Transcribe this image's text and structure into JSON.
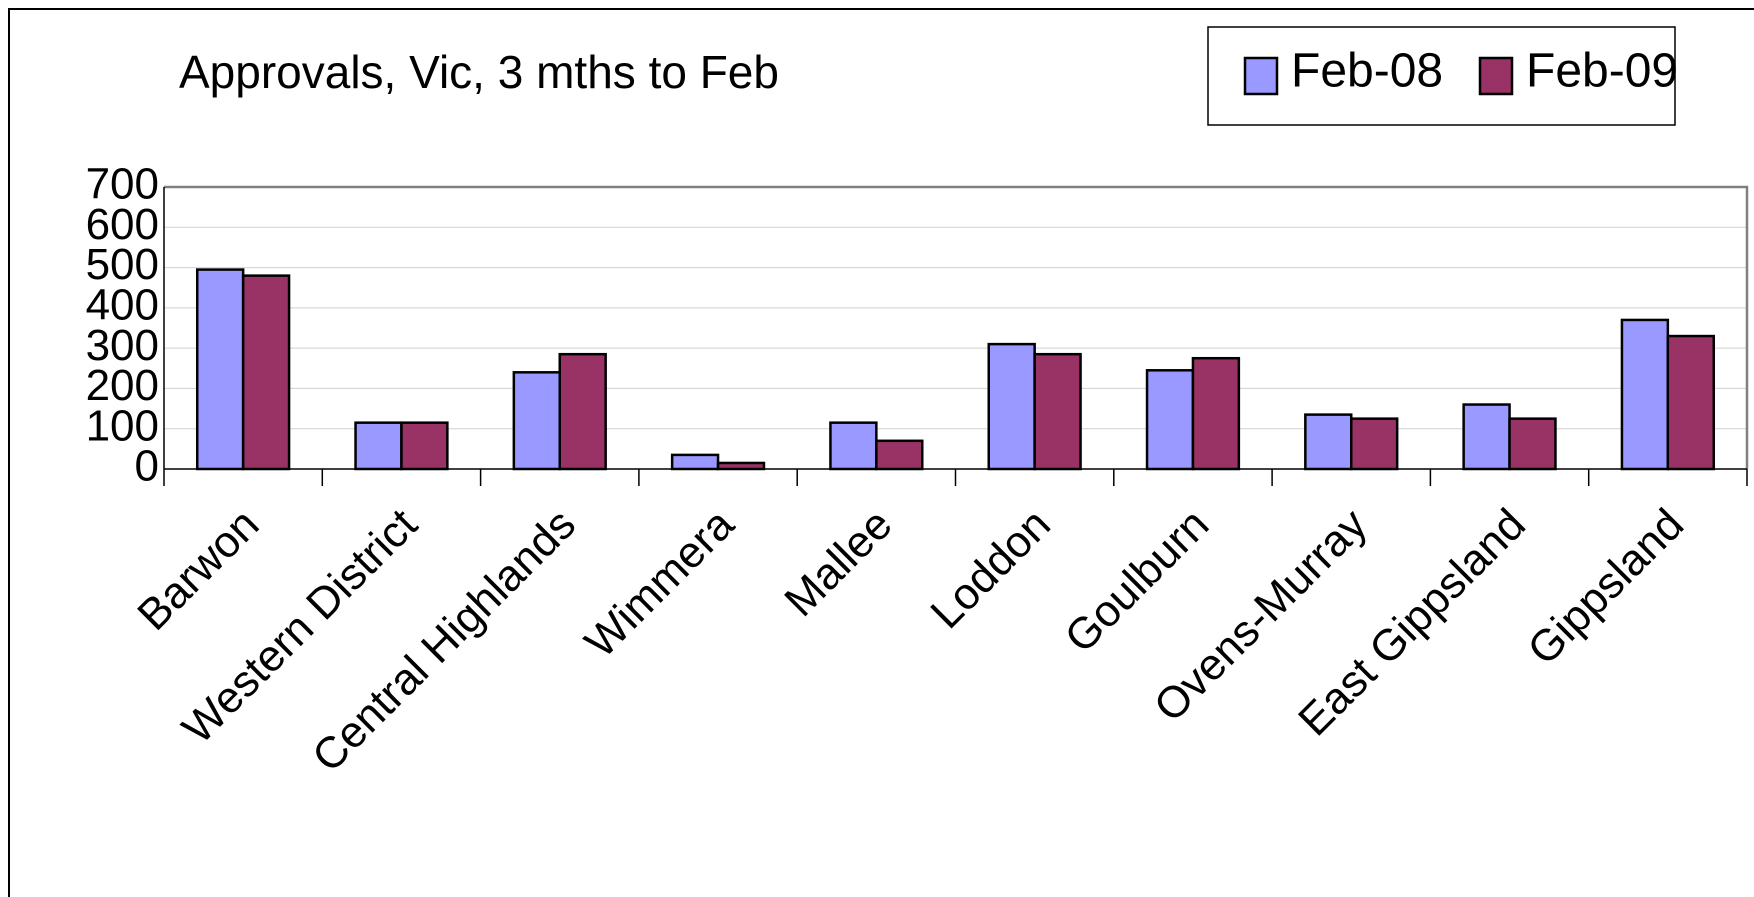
{
  "chart_data": {
    "type": "bar",
    "title": "Approvals, Vic, 3 mths to Feb",
    "categories": [
      "Barwon",
      "Western District",
      "Central Highlands",
      "Wimmera",
      "Mallee",
      "Loddon",
      "Goulburn",
      "Ovens-Murray",
      "East Gippsland",
      "Gippsland"
    ],
    "series": [
      {
        "name": "Feb-08",
        "color": "#9999ff",
        "values": [
          495,
          115,
          240,
          35,
          115,
          310,
          245,
          135,
          160,
          370
        ]
      },
      {
        "name": "Feb-09",
        "color": "#993366",
        "values": [
          480,
          115,
          285,
          15,
          70,
          285,
          275,
          125,
          125,
          330
        ]
      }
    ],
    "ylim": [
      0,
      700
    ],
    "yticks": [
      0,
      100,
      200,
      300,
      400,
      500,
      600,
      700
    ],
    "grid": true,
    "legend": "top-right"
  }
}
